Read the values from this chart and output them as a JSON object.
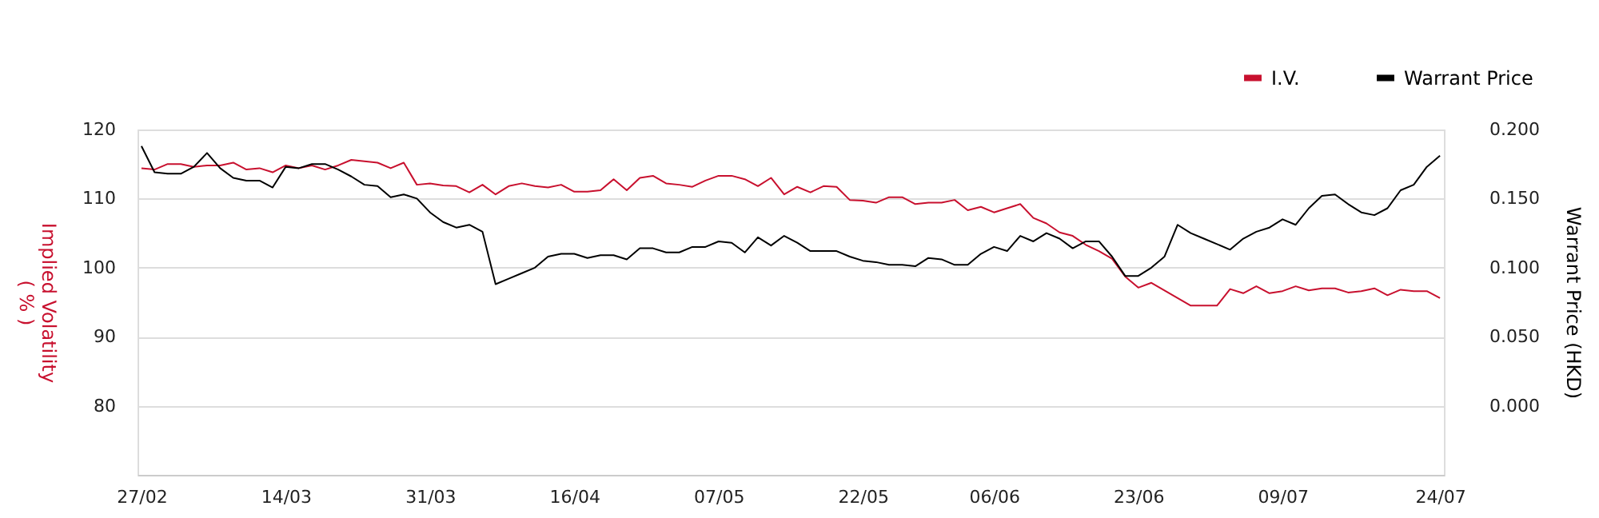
{
  "chart_data": {
    "type": "line",
    "categories": [
      "27/02",
      null,
      null,
      null,
      null,
      null,
      null,
      null,
      null,
      null,
      null,
      "14/03",
      null,
      null,
      null,
      null,
      null,
      null,
      null,
      null,
      null,
      null,
      "31/03",
      null,
      null,
      null,
      null,
      null,
      null,
      null,
      null,
      null,
      null,
      "16/04",
      null,
      null,
      null,
      null,
      null,
      null,
      null,
      null,
      null,
      null,
      "07/05",
      null,
      null,
      null,
      null,
      null,
      null,
      null,
      null,
      null,
      null,
      "22/05",
      null,
      null,
      null,
      null,
      null,
      null,
      null,
      null,
      null,
      "06/06",
      null,
      null,
      null,
      null,
      null,
      null,
      null,
      null,
      null,
      null,
      "23/06",
      null,
      null,
      null,
      null,
      null,
      null,
      null,
      null,
      null,
      null,
      "09/07",
      null,
      null,
      null,
      null,
      null,
      null,
      null,
      null,
      null,
      null,
      null,
      "24/07"
    ],
    "series": [
      {
        "name": "I.V.",
        "color": "#c8102e",
        "values": [
          114.4,
          114.2,
          115,
          115,
          114.6,
          114.8,
          114.8,
          115.2,
          114.2,
          114.4,
          113.8,
          114.8,
          114.4,
          114.8,
          114.2,
          114.8,
          115.6,
          115.4,
          115.2,
          114.4,
          115.2,
          112,
          112.2,
          111.9,
          111.8,
          110.9,
          112,
          110.6,
          111.8,
          112.2,
          111.8,
          111.6,
          112,
          111,
          111,
          111.2,
          112.8,
          111.2,
          113,
          113.3,
          112.2,
          112,
          111.7,
          112.6,
          113.3,
          113.3,
          112.8,
          111.8,
          113,
          110.6,
          111.7,
          110.9,
          111.8,
          111.7,
          109.8,
          109.7,
          109.4,
          110.2,
          110.2,
          109.2,
          109.4,
          109.4,
          109.8,
          108.3,
          108.8,
          108,
          108.6,
          109.2,
          107.2,
          106.4,
          105.1,
          104.6,
          103.3,
          102.4,
          101.3,
          98.7,
          97.1,
          97.8,
          96.7,
          95.6,
          94.5,
          94.5,
          94.5,
          96.9,
          96.3,
          97.3,
          96.3,
          96.6,
          97.3,
          96.7,
          97,
          97,
          96.4,
          96.6,
          97,
          96,
          96.8,
          96.6,
          96.6,
          95.6
        ]
      },
      {
        "name": "Warrant Price",
        "color": "#000000",
        "axis": "y2",
        "values": [
          0.188,
          0.169,
          0.168,
          0.168,
          0.173,
          0.183,
          0.172,
          0.165,
          0.163,
          0.163,
          0.158,
          0.173,
          0.172,
          0.175,
          0.175,
          0.171,
          0.166,
          0.16,
          0.159,
          0.151,
          0.153,
          0.15,
          0.14,
          0.133,
          0.129,
          0.131,
          0.126,
          0.088,
          0.092,
          0.096,
          0.1,
          0.108,
          0.11,
          0.11,
          0.107,
          0.109,
          0.109,
          0.106,
          0.114,
          0.114,
          0.111,
          0.111,
          0.115,
          0.115,
          0.119,
          0.118,
          0.111,
          0.122,
          0.116,
          0.123,
          0.118,
          0.112,
          0.112,
          0.112,
          0.108,
          0.105,
          0.104,
          0.102,
          0.102,
          0.101,
          0.107,
          0.106,
          0.102,
          0.102,
          0.11,
          0.115,
          0.112,
          0.123,
          0.119,
          0.125,
          0.121,
          0.114,
          0.119,
          0.119,
          0.108,
          0.094,
          0.094,
          0.1,
          0.108,
          0.131,
          0.125,
          0.121,
          0.117,
          0.113,
          0.121,
          0.126,
          0.129,
          0.135,
          0.131,
          0.143,
          0.152,
          0.153,
          0.146,
          0.14,
          0.138,
          0.143,
          0.156,
          0.16,
          0.173,
          0.181
        ]
      }
    ],
    "ylabel": "Implied Volatility\n( % )",
    "y2label": "Warrant Price (HKD)",
    "ylim": [
      70,
      120
    ],
    "yticks": [
      80,
      90,
      100,
      110,
      120
    ],
    "y2lim": [
      -0.05,
      0.2
    ],
    "y2ticks": [
      {
        "value": 0,
        "label": "0.000"
      },
      {
        "value": 0.05,
        "label": "0.050"
      },
      {
        "value": 0.1,
        "label": "0.100"
      },
      {
        "value": 0.15,
        "label": "0.150"
      },
      {
        "value": 0.2,
        "label": "0.200"
      }
    ],
    "grid": "y",
    "legend": "top right"
  }
}
